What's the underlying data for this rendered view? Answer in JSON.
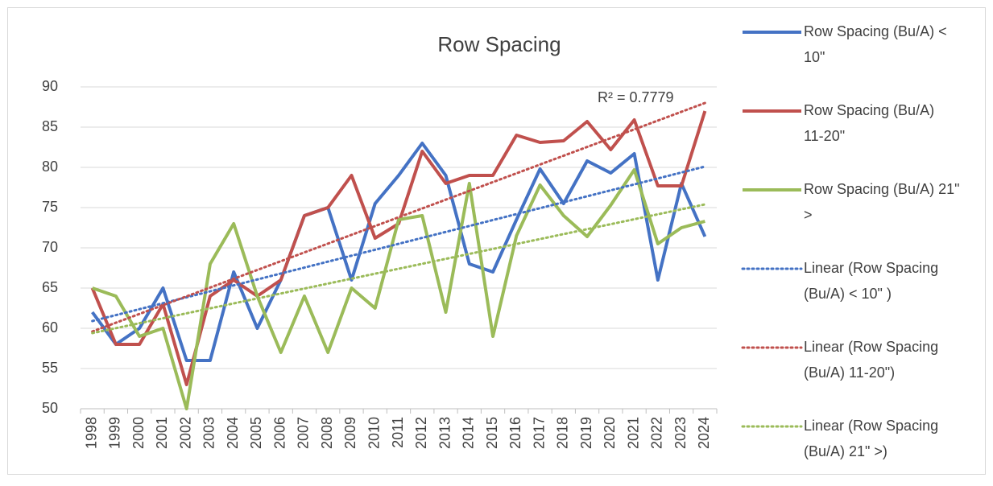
{
  "chart_data": {
    "type": "line",
    "title": "Row Spacing",
    "categories": [
      "1998",
      "1999",
      "2000",
      "2001",
      "2002",
      "2003",
      "2004",
      "2005",
      "2006",
      "2007",
      "2008",
      "2009",
      "2010",
      "2011",
      "2012",
      "2013",
      "2014",
      "2015",
      "2016",
      "2017",
      "2018",
      "2019",
      "2020",
      "2021",
      "2022",
      "2023",
      "2024"
    ],
    "series": [
      {
        "name": "Row Spacing (Bu/A) < 10\"",
        "color": "#4472c4",
        "values": [
          62,
          58,
          60,
          65,
          56,
          56,
          67,
          60,
          66,
          74,
          75,
          66,
          75.5,
          79,
          83,
          79,
          68,
          67,
          73.5,
          79.8,
          75.5,
          80.8,
          79.3,
          81.7,
          66,
          78,
          71.4
        ]
      },
      {
        "name": "Row Spacing (Bu/A) 11-20\"",
        "color": "#c0504d",
        "values": [
          65,
          58,
          58,
          63,
          53,
          64,
          66,
          64,
          66,
          74,
          75,
          79,
          71.2,
          73,
          82,
          78,
          79,
          79,
          84,
          83.1,
          83.3,
          85.7,
          82.2,
          85.9,
          77.7,
          77.7,
          87
        ]
      },
      {
        "name": "Row Spacing (Bu/A) 21\" >",
        "color": "#9bbb59",
        "values": [
          65,
          64,
          59,
          60,
          50,
          68,
          73,
          64,
          57,
          64,
          57,
          65,
          62.5,
          73.5,
          74,
          62,
          78,
          59,
          71.5,
          77.8,
          74,
          71.4,
          75.3,
          79.7,
          70.5,
          72.5,
          73.3
        ]
      }
    ],
    "trendlines": [
      {
        "name": "Linear (Row Spacing (Bu/A) < 10\" )",
        "color": "#4472c4",
        "values": [
          60.9,
          80.1
        ]
      },
      {
        "name": "Linear (Row Spacing (Bu/A) 11-20\")",
        "color": "#c0504d",
        "values": [
          59.6,
          88
        ]
      },
      {
        "name": "Linear (Row Spacing (Bu/A) 21\" >)",
        "color": "#9bbb59",
        "values": [
          59.4,
          75.4
        ]
      }
    ],
    "annotation": "R² = 0.7779",
    "ylim": [
      50,
      90
    ],
    "yticks": [
      50,
      55,
      60,
      65,
      70,
      75,
      80,
      85,
      90
    ],
    "grid": true
  }
}
